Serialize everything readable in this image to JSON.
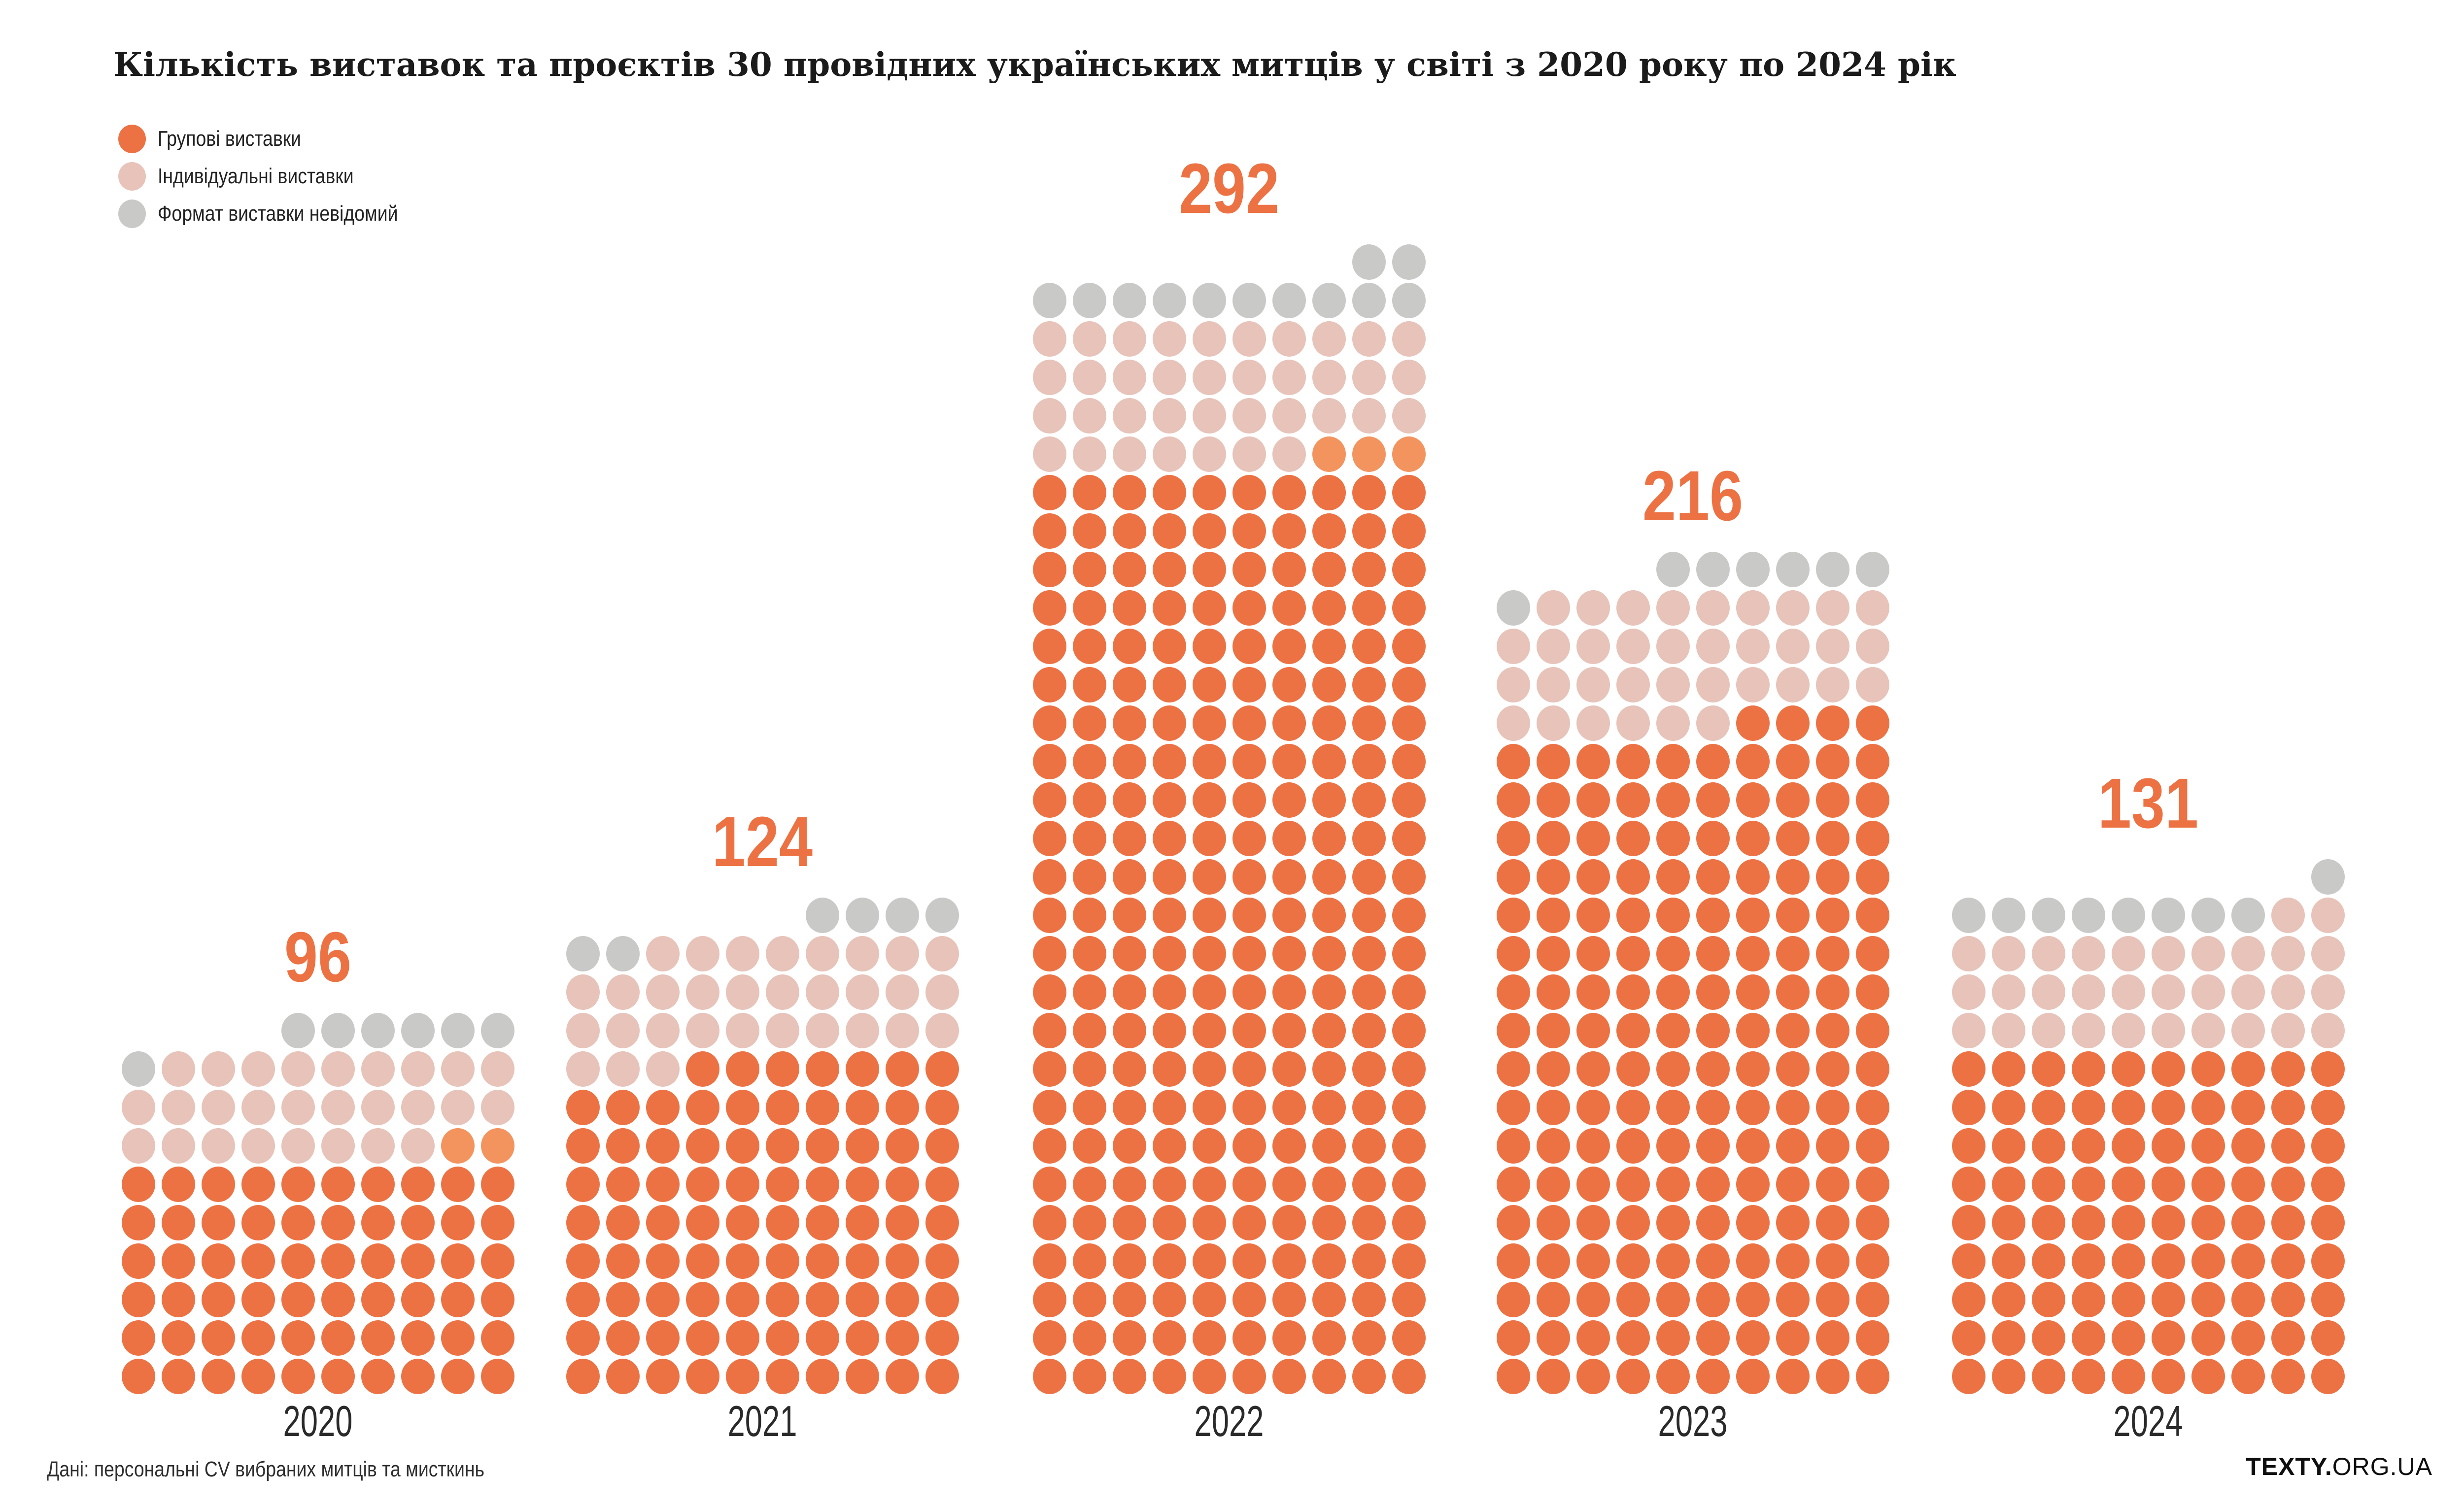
{
  "header": {
    "title": "Кількість виставок та проєктів 30 провідних українських митців у світі з 2020 року по 2024 рік"
  },
  "legend": {
    "items": [
      {
        "label": "Групові виставки",
        "color": "#ED7243"
      },
      {
        "label": "Індивідуальні виставки",
        "color": "#E7C3B9"
      },
      {
        "label": "Формат виставки невідомий",
        "color": "#C9C9C7"
      }
    ]
  },
  "footer": {
    "source": "Дані: персональні CV вибраних митців та мисткинь",
    "logo_bold": "TEXTY.",
    "logo_regular": "ORG.UA"
  },
  "colors": {
    "accent": "#ED7243",
    "text": "#1B1B1B",
    "muted_text": "#2E2E2E",
    "background": "#FFFFFF"
  },
  "chart_data": {
    "type": "waffle",
    "title": "Кількість виставок та проєктів 30 провідних українських митців у світі з 2020 року по 2024 рік",
    "categories": [
      "2020",
      "2021",
      "2022",
      "2023",
      "2024"
    ],
    "totals": [
      96,
      124,
      292,
      216,
      131
    ],
    "series": [
      {
        "name": "Групові виставки",
        "color": "#ED7243",
        "values": [
          62,
          87,
          243,
          174,
          90
        ]
      },
      {
        "name": "Індивідуальні виставки",
        "color": "#E7C3B9",
        "values": [
          27,
          31,
          37,
          35,
          32
        ]
      },
      {
        "name": "Формат виставки невідомий",
        "color": "#C9C9C7",
        "values": [
          7,
          6,
          12,
          7,
          9
        ]
      }
    ],
    "grid_columns": 10,
    "fill_order": "bottom-to-top, right-to-left",
    "legend_position": "top-left",
    "cell_colors": {
      "O": "#ED7243",
      "L": "#F3945F",
      "P": "#E7C3B9",
      "G": "#C9C9C7"
    },
    "blocks": [
      {
        "year": "2020",
        "total": 96,
        "rows": [
          "EEEEGGGGGG",
          "GPPPPPPPPP",
          "PPPPPPPPPP",
          "PPPPPPPPLL",
          "OOOOOOOOOO",
          "OOOOOOOOOO",
          "OOOOOOOOOO",
          "OOOOOOOOOO",
          "OOOOOOOOOO",
          "OOOOOOOOOO"
        ]
      },
      {
        "year": "2021",
        "total": 124,
        "rows": [
          "EEEEEEGGGG",
          "GGPPPPPPPP",
          "PPPPPPPPPP",
          "PPPPPPPPPP",
          "PPPOOOOOOO",
          "OOOOOOOOOO",
          "OOOOOOOOOO",
          "OOOOOOOOOO",
          "OOOOOOOOOO",
          "OOOOOOOOOO",
          "OOOOOOOOOO",
          "OOOOOOOOOO",
          "OOOOOOOOOO"
        ]
      },
      {
        "year": "2022",
        "total": 292,
        "rows": [
          "EEEEEEEEGG",
          "GGGGGGGGGG",
          "PPPPPPPPPP",
          "PPPPPPPPPP",
          "PPPPPPPPPP",
          "PPPPPPPLLL",
          "OOOOOOOOOO",
          "OOOOOOOOOO",
          "OOOOOOOOOO",
          "OOOOOOOOOO",
          "OOOOOOOOOO",
          "OOOOOOOOOO",
          "OOOOOOOOOO",
          "OOOOOOOOOO",
          "OOOOOOOOOO",
          "OOOOOOOOOO",
          "OOOOOOOOOO",
          "OOOOOOOOOO",
          "OOOOOOOOOO",
          "OOOOOOOOOO",
          "OOOOOOOOOO",
          "OOOOOOOOOO",
          "OOOOOOOOOO",
          "OOOOOOOOOO",
          "OOOOOOOOOO",
          "OOOOOOOOOO",
          "OOOOOOOOOO",
          "OOOOOOOOOO",
          "OOOOOOOOOO",
          "OOOOOOOOOO"
        ]
      },
      {
        "year": "2023",
        "total": 216,
        "rows": [
          "EEEEGGGGGG",
          "GPPPPPPPPP",
          "PPPPPPPPPP",
          "PPPPPPPPPP",
          "PPPPPPOOOO",
          "OOOOOOOOOO",
          "OOOOOOOOOO",
          "OOOOOOOOOO",
          "OOOOOOOOOO",
          "OOOOOOOOOO",
          "OOOOOOOOOO",
          "OOOOOOOOOO",
          "OOOOOOOOOO",
          "OOOOOOOOOO",
          "OOOOOOOOOO",
          "OOOOOOOOOO",
          "OOOOOOOOOO",
          "OOOOOOOOOO",
          "OOOOOOOOOO",
          "OOOOOOOOOO",
          "OOOOOOOOOO",
          "OOOOOOOOOO"
        ]
      },
      {
        "year": "2024",
        "total": 131,
        "rows": [
          "EEEEEEEEEG",
          "GGGGGGGGPP",
          "PPPPPPPPPP",
          "PPPPPPPPPP",
          "PPPPPPPPPP",
          "OOOOOOOOOO",
          "OOOOOOOOOO",
          "OOOOOOOOOO",
          "OOOOOOOOOO",
          "OOOOOOOOOO",
          "OOOOOOOOOO",
          "OOOOOOOOOO",
          "OOOOOOOOOO",
          "OOOOOOOOOO"
        ]
      }
    ]
  }
}
